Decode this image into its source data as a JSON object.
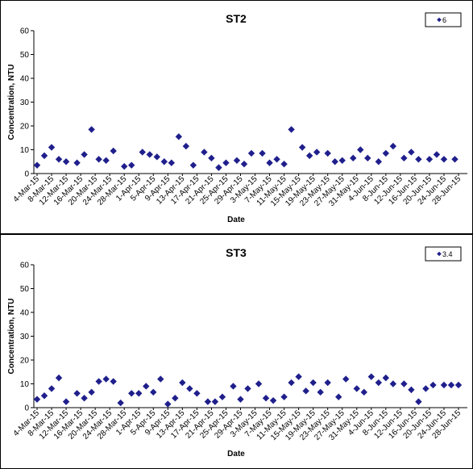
{
  "chart_data": [
    {
      "type": "scatter",
      "title": "ST2",
      "xlabel": "Date",
      "ylabel": "Concentration, NTU",
      "ylim": [
        0,
        60
      ],
      "yticks": [
        0,
        10,
        20,
        30,
        40,
        50,
        60
      ],
      "xticks": [
        "4-Mar-15",
        "8-Mar-15",
        "12-Mar-15",
        "16-Mar-15",
        "20-Mar-15",
        "24-Mar-15",
        "28-Mar-15",
        "1-Apr-15",
        "5-Apr-15",
        "9-Apr-15",
        "13-Apr-15",
        "17-Apr-15",
        "21-Apr-15",
        "25-Apr-15",
        "29-Apr-15",
        "3-May-15",
        "7-May-15",
        "11-May-15",
        "15-May-15",
        "19-May-15",
        "23-May-15",
        "27-May-15",
        "31-May-15",
        "4-Jun-15",
        "8-Jun-15",
        "12-Jun-15",
        "16-Jun-15",
        "20-Jun-15",
        "24-Jun-15",
        "28-Jun-15"
      ],
      "legend": {
        "position": "top-right",
        "entries": [
          "6"
        ]
      },
      "series": [
        {
          "name": "6",
          "color": "#1f1f8c",
          "marker": "diamond",
          "x": [
            "4-Mar-15",
            "6-Mar-15",
            "8-Mar-15",
            "10-Mar-15",
            "12-Mar-15",
            "15-Mar-15",
            "17-Mar-15",
            "19-Mar-15",
            "21-Mar-15",
            "23-Mar-15",
            "25-Mar-15",
            "28-Mar-15",
            "30-Mar-15",
            "2-Apr-15",
            "4-Apr-15",
            "6-Apr-15",
            "8-Apr-15",
            "10-Apr-15",
            "12-Apr-15",
            "14-Apr-15",
            "16-Apr-15",
            "19-Apr-15",
            "21-Apr-15",
            "23-Apr-15",
            "25-Apr-15",
            "28-Apr-15",
            "30-Apr-15",
            "2-May-15",
            "5-May-15",
            "7-May-15",
            "9-May-15",
            "11-May-15",
            "13-May-15",
            "16-May-15",
            "18-May-15",
            "20-May-15",
            "23-May-15",
            "25-May-15",
            "27-May-15",
            "30-May-15",
            "1-Jun-15",
            "3-Jun-15",
            "6-Jun-15",
            "8-Jun-15",
            "10-Jun-15",
            "13-Jun-15",
            "15-Jun-15",
            "17-Jun-15",
            "20-Jun-15",
            "22-Jun-15",
            "24-Jun-15",
            "27-Jun-15"
          ],
          "y": [
            3.5,
            7.5,
            11,
            6,
            5,
            4.5,
            8,
            18.5,
            6,
            5.5,
            9.5,
            3,
            3.5,
            9,
            8,
            7,
            5,
            4.5,
            15.5,
            11.5,
            3.5,
            9,
            6.5,
            2.5,
            4.5,
            5.5,
            4,
            8.5,
            8.5,
            4.5,
            6,
            4,
            18.5,
            11,
            7.5,
            9,
            8.5,
            5,
            5.5,
            6.5,
            10,
            6.5,
            5,
            8.5,
            11.5,
            6.5,
            9,
            6,
            6,
            8,
            6,
            6
          ]
        }
      ]
    },
    {
      "type": "scatter",
      "title": "ST3",
      "xlabel": "Date",
      "ylabel": "Concentration, NTU",
      "ylim": [
        0,
        60
      ],
      "yticks": [
        0,
        10,
        20,
        30,
        40,
        50,
        60
      ],
      "xticks": [
        "4-Mar-15",
        "8-Mar-15",
        "12-Mar-15",
        "16-Mar-15",
        "20-Mar-15",
        "24-Mar-15",
        "28-Mar-15",
        "1-Apr-15",
        "5-Apr-15",
        "9-Apr-15",
        "13-Apr-15",
        "17-Apr-15",
        "21-Apr-15",
        "25-Apr-15",
        "29-Apr-15",
        "3-May-15",
        "7-May-15",
        "11-May-15",
        "15-May-15",
        "19-May-15",
        "23-May-15",
        "27-May-15",
        "31-May-15",
        "4-Jun-15",
        "8-Jun-15",
        "12-Jun-15",
        "16-Jun-15",
        "20-Jun-15",
        "24-Jun-15",
        "28-Jun-15"
      ],
      "legend": {
        "position": "top-right",
        "entries": [
          "3.4"
        ]
      },
      "series": [
        {
          "name": "3.4",
          "color": "#1f1f8c",
          "marker": "diamond",
          "x": [
            "4-Mar-15",
            "6-Mar-15",
            "8-Mar-15",
            "10-Mar-15",
            "12-Mar-15",
            "15-Mar-15",
            "17-Mar-15",
            "19-Mar-15",
            "21-Mar-15",
            "23-Mar-15",
            "25-Mar-15",
            "27-Mar-15",
            "30-Mar-15",
            "1-Apr-15",
            "3-Apr-15",
            "5-Apr-15",
            "7-Apr-15",
            "9-Apr-15",
            "11-Apr-15",
            "13-Apr-15",
            "15-Apr-15",
            "17-Apr-15",
            "20-Apr-15",
            "22-Apr-15",
            "24-Apr-15",
            "27-Apr-15",
            "29-Apr-15",
            "1-May-15",
            "4-May-15",
            "6-May-15",
            "8-May-15",
            "11-May-15",
            "13-May-15",
            "15-May-15",
            "17-May-15",
            "19-May-15",
            "21-May-15",
            "23-May-15",
            "26-May-15",
            "28-May-15",
            "31-May-15",
            "2-Jun-15",
            "4-Jun-15",
            "6-Jun-15",
            "8-Jun-15",
            "10-Jun-15",
            "13-Jun-15",
            "15-Jun-15",
            "17-Jun-15",
            "19-Jun-15",
            "21-Jun-15",
            "24-Jun-15",
            "26-Jun-15",
            "28-Jun-15"
          ],
          "y": [
            3.5,
            5,
            8,
            12.5,
            2.5,
            6,
            4,
            6.5,
            11,
            12,
            11,
            2,
            6,
            6,
            9,
            6.5,
            12,
            1.5,
            4,
            10.5,
            8,
            6,
            2.5,
            2.5,
            4.5,
            9,
            3.5,
            8,
            10,
            4,
            3,
            4.5,
            10.5,
            13,
            7,
            10.5,
            6.5,
            10.5,
            4.5,
            12,
            8,
            6.5,
            13,
            10.5,
            12.5,
            10,
            10,
            7.5,
            2.5,
            8,
            9.5,
            9.5,
            9.5,
            9.5
          ]
        }
      ]
    }
  ]
}
